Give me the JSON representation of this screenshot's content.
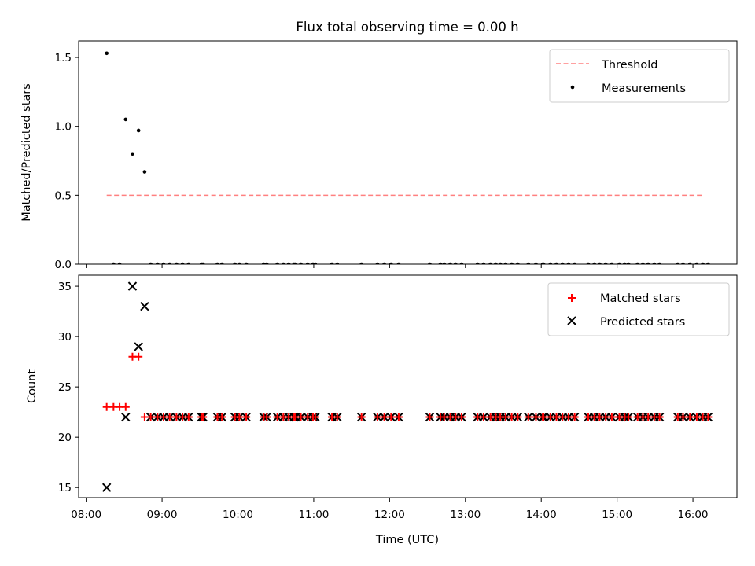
{
  "title": "Flux total observing time = 0.00 h",
  "chart_data": [
    {
      "type": "scatter",
      "ylabel": "Matched/Predicted stars",
      "xlim": [
        7.9,
        16.58
      ],
      "ylim": [
        0,
        1.62
      ],
      "yticks": [
        0.0,
        0.5,
        1.0,
        1.5
      ],
      "ytick_labels": [
        "0.0",
        "0.5",
        "1.0",
        "1.5"
      ],
      "threshold": {
        "name": "Threshold",
        "value": 0.5,
        "x_start": 8.27,
        "x_end": 16.15,
        "color": "#ff8080"
      },
      "legend": {
        "position": "top-right",
        "entries": [
          "Threshold",
          "Measurements"
        ]
      },
      "series": [
        {
          "name": "Measurements",
          "color": "#000000",
          "points": [
            [
              8.27,
              1.53
            ],
            [
              8.52,
              1.05
            ],
            [
              8.61,
              0.8
            ],
            [
              8.69,
              0.97
            ],
            [
              8.77,
              0.67
            ]
          ]
        }
      ]
    },
    {
      "type": "scatter",
      "ylabel": "Count",
      "xlabel": "Time (UTC)",
      "xlim": [
        7.9,
        16.58
      ],
      "ylim": [
        14.0,
        36.1
      ],
      "yticks": [
        15,
        20,
        25,
        30,
        35
      ],
      "ytick_labels": [
        "15",
        "20",
        "25",
        "30",
        "35"
      ],
      "xticks": [
        8,
        9,
        10,
        11,
        12,
        13,
        14,
        15,
        16
      ],
      "xtick_labels": [
        "08:00",
        "09:00",
        "10:00",
        "11:00",
        "12:00",
        "13:00",
        "14:00",
        "15:00",
        "16:00"
      ],
      "legend": {
        "position": "top-right",
        "entries": [
          "Matched stars",
          "Predicted stars"
        ]
      },
      "series": [
        {
          "name": "Matched stars",
          "color": "#ff0000",
          "marker": "+",
          "points": [
            [
              8.27,
              23
            ],
            [
              8.36,
              23
            ],
            [
              8.44,
              23
            ],
            [
              8.52,
              23
            ],
            [
              8.61,
              28
            ],
            [
              8.69,
              28
            ]
          ],
          "x_at_22": [
            8.77,
            8.85,
            8.94,
            9.02,
            9.1,
            9.19,
            9.27,
            9.35,
            9.52,
            9.54,
            9.73,
            9.79,
            9.96,
            10.02,
            10.11,
            10.34,
            10.38,
            10.52,
            10.6,
            10.67,
            10.74,
            10.76,
            10.83,
            10.92,
            10.99,
            11.02,
            11.24,
            11.31,
            11.63,
            11.84,
            11.93,
            12.02,
            12.12,
            12.53,
            12.67,
            12.72,
            12.8,
            12.87,
            12.95,
            13.16,
            13.24,
            13.33,
            13.4,
            13.46,
            13.53,
            13.61,
            13.69,
            13.83,
            13.93,
            14.02,
            14.03,
            14.12,
            14.2,
            14.28,
            14.36,
            14.44,
            14.62,
            14.7,
            14.77,
            14.85,
            14.93,
            15.03,
            15.1,
            15.15,
            15.27,
            15.34,
            15.41,
            15.49,
            15.56,
            15.8,
            15.87,
            15.96,
            16.05,
            16.13,
            16.2
          ]
        },
        {
          "name": "Predicted stars",
          "color": "#000000",
          "marker": "x",
          "points": [
            [
              8.27,
              15
            ],
            [
              8.52,
              22
            ],
            [
              8.61,
              35
            ],
            [
              8.69,
              29
            ],
            [
              8.77,
              33
            ]
          ],
          "x_at_22": [
            8.85,
            8.94,
            9.02,
            9.1,
            9.19,
            9.27,
            9.35,
            9.52,
            9.54,
            9.73,
            9.79,
            9.96,
            10.02,
            10.11,
            10.34,
            10.38,
            10.52,
            10.6,
            10.67,
            10.74,
            10.76,
            10.83,
            10.92,
            10.99,
            11.02,
            11.24,
            11.31,
            11.63,
            11.84,
            11.93,
            12.02,
            12.12,
            12.53,
            12.67,
            12.72,
            12.8,
            12.87,
            12.95,
            13.16,
            13.24,
            13.33,
            13.4,
            13.46,
            13.53,
            13.61,
            13.69,
            13.83,
            13.93,
            14.02,
            14.03,
            14.12,
            14.2,
            14.28,
            14.36,
            14.44,
            14.62,
            14.7,
            14.77,
            14.85,
            14.93,
            15.03,
            15.1,
            15.15,
            15.27,
            15.34,
            15.41,
            15.49,
            15.56,
            15.8,
            15.87,
            15.96,
            16.05,
            16.13,
            16.2
          ]
        }
      ]
    }
  ]
}
